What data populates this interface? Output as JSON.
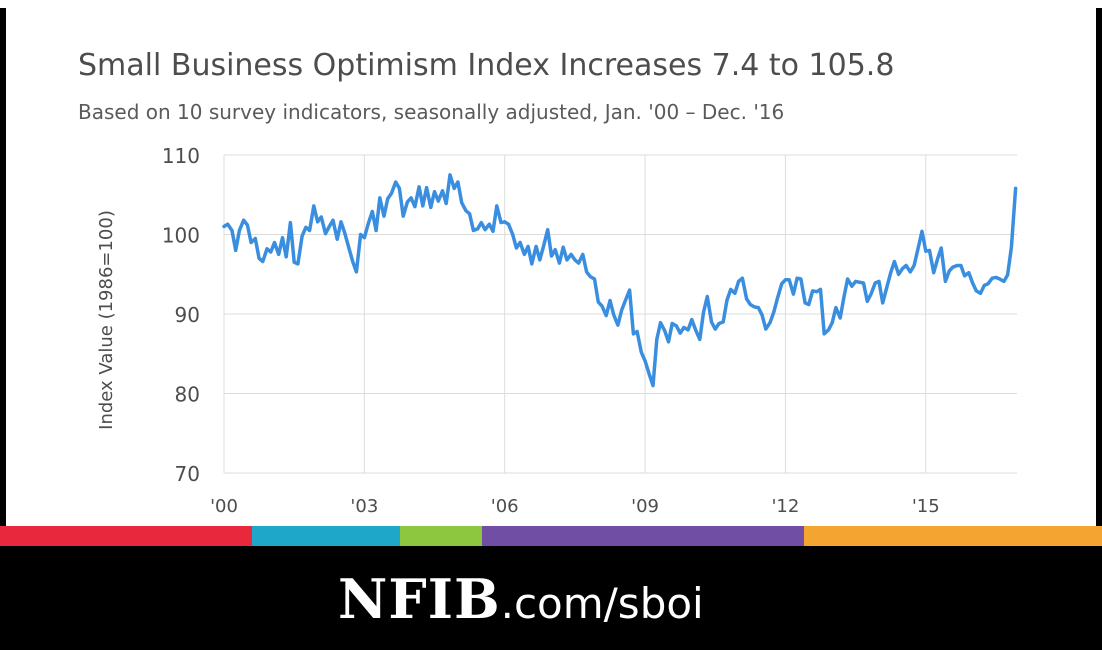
{
  "colors": {
    "line": "#3a8ee0",
    "grid": "#dcdcdc",
    "axis_text": "#4d4d4f",
    "stripes": [
      "#e8283c",
      "#1fa7c9",
      "#8dc63f",
      "#6f4ea3",
      "#f3a431"
    ]
  },
  "chart_data": {
    "type": "line",
    "title": "Small Business Optimism Index Increases 7.4 to 105.8",
    "subtitle": "Based on 10 survey indicators, seasonally adjusted, Jan. '00 – Dec. '16",
    "xlabel": "",
    "ylabel": "Index Value (1986=100)",
    "ylim": [
      70,
      110
    ],
    "yticks": [
      110,
      100,
      90,
      80,
      70
    ],
    "xlim": [
      2000,
      2016.95
    ],
    "xticks": [
      {
        "value": 2000,
        "label": "'00"
      },
      {
        "value": 2003,
        "label": "'03"
      },
      {
        "value": 2006,
        "label": "'06"
      },
      {
        "value": 2009,
        "label": "'09"
      },
      {
        "value": 2012,
        "label": "'12"
      },
      {
        "value": 2015,
        "label": "'15"
      }
    ],
    "grid": true,
    "series": [
      {
        "values": [
          [
            2000.0,
            101.0
          ],
          [
            2000.08,
            101.3
          ],
          [
            2000.17,
            100.5
          ],
          [
            2000.25,
            98.0
          ],
          [
            2000.33,
            100.5
          ],
          [
            2000.42,
            101.8
          ],
          [
            2000.5,
            101.2
          ],
          [
            2000.58,
            99.0
          ],
          [
            2000.67,
            99.5
          ],
          [
            2000.75,
            97.0
          ],
          [
            2000.83,
            96.6
          ],
          [
            2000.92,
            98.2
          ],
          [
            2001.0,
            97.8
          ],
          [
            2001.08,
            99.0
          ],
          [
            2001.17,
            97.5
          ],
          [
            2001.25,
            99.6
          ],
          [
            2001.33,
            97.2
          ],
          [
            2001.42,
            101.5
          ],
          [
            2001.5,
            96.5
          ],
          [
            2001.58,
            96.3
          ],
          [
            2001.67,
            99.8
          ],
          [
            2001.75,
            100.9
          ],
          [
            2001.83,
            100.5
          ],
          [
            2001.92,
            103.6
          ],
          [
            2002.0,
            101.6
          ],
          [
            2002.08,
            102.2
          ],
          [
            2002.17,
            100.1
          ],
          [
            2002.25,
            101.0
          ],
          [
            2002.33,
            101.8
          ],
          [
            2002.42,
            99.4
          ],
          [
            2002.5,
            101.6
          ],
          [
            2002.58,
            100.2
          ],
          [
            2002.67,
            98.3
          ],
          [
            2002.75,
            96.6
          ],
          [
            2002.83,
            95.3
          ],
          [
            2002.92,
            100.0
          ],
          [
            2003.0,
            99.6
          ],
          [
            2003.08,
            101.3
          ],
          [
            2003.17,
            102.9
          ],
          [
            2003.25,
            100.5
          ],
          [
            2003.33,
            104.6
          ],
          [
            2003.42,
            102.3
          ],
          [
            2003.5,
            104.5
          ],
          [
            2003.58,
            105.2
          ],
          [
            2003.67,
            106.6
          ],
          [
            2003.75,
            105.8
          ],
          [
            2003.83,
            102.3
          ],
          [
            2003.92,
            104.1
          ],
          [
            2004.0,
            104.6
          ],
          [
            2004.08,
            103.5
          ],
          [
            2004.17,
            106.0
          ],
          [
            2004.25,
            103.6
          ],
          [
            2004.33,
            105.9
          ],
          [
            2004.42,
            103.4
          ],
          [
            2004.5,
            105.4
          ],
          [
            2004.58,
            104.2
          ],
          [
            2004.67,
            105.5
          ],
          [
            2004.75,
            103.9
          ],
          [
            2004.83,
            107.5
          ],
          [
            2004.92,
            105.8
          ],
          [
            2005.0,
            106.6
          ],
          [
            2005.08,
            104.0
          ],
          [
            2005.17,
            103.0
          ],
          [
            2005.25,
            102.6
          ],
          [
            2005.33,
            100.5
          ],
          [
            2005.42,
            100.7
          ],
          [
            2005.5,
            101.5
          ],
          [
            2005.58,
            100.6
          ],
          [
            2005.67,
            101.3
          ],
          [
            2005.75,
            100.4
          ],
          [
            2005.83,
            103.6
          ],
          [
            2005.92,
            101.5
          ],
          [
            2006.0,
            101.6
          ],
          [
            2006.08,
            101.3
          ],
          [
            2006.17,
            100.0
          ],
          [
            2006.25,
            98.3
          ],
          [
            2006.33,
            99.0
          ],
          [
            2006.42,
            97.5
          ],
          [
            2006.5,
            98.5
          ],
          [
            2006.58,
            96.3
          ],
          [
            2006.67,
            98.5
          ],
          [
            2006.75,
            96.8
          ],
          [
            2006.83,
            98.5
          ],
          [
            2006.92,
            100.6
          ],
          [
            2007.0,
            97.3
          ],
          [
            2007.08,
            98.1
          ],
          [
            2007.17,
            96.4
          ],
          [
            2007.25,
            98.4
          ],
          [
            2007.33,
            96.8
          ],
          [
            2007.42,
            97.5
          ],
          [
            2007.5,
            96.8
          ],
          [
            2007.58,
            96.4
          ],
          [
            2007.67,
            97.5
          ],
          [
            2007.75,
            95.3
          ],
          [
            2007.83,
            94.7
          ],
          [
            2007.92,
            94.4
          ],
          [
            2008.0,
            91.5
          ],
          [
            2008.08,
            91.0
          ],
          [
            2008.17,
            89.8
          ],
          [
            2008.25,
            91.7
          ],
          [
            2008.33,
            89.9
          ],
          [
            2008.42,
            88.6
          ],
          [
            2008.5,
            90.5
          ],
          [
            2008.58,
            91.7
          ],
          [
            2008.67,
            93.0
          ],
          [
            2008.75,
            87.5
          ],
          [
            2008.83,
            87.8
          ],
          [
            2008.92,
            85.2
          ],
          [
            2009.0,
            84.1
          ],
          [
            2009.08,
            82.6
          ],
          [
            2009.17,
            81.0
          ],
          [
            2009.25,
            86.8
          ],
          [
            2009.33,
            88.9
          ],
          [
            2009.42,
            87.9
          ],
          [
            2009.5,
            86.5
          ],
          [
            2009.58,
            88.8
          ],
          [
            2009.67,
            88.5
          ],
          [
            2009.75,
            87.6
          ],
          [
            2009.83,
            88.3
          ],
          [
            2009.92,
            88.0
          ],
          [
            2010.0,
            89.3
          ],
          [
            2010.08,
            88.0
          ],
          [
            2010.17,
            86.8
          ],
          [
            2010.25,
            90.2
          ],
          [
            2010.33,
            92.2
          ],
          [
            2010.42,
            89.0
          ],
          [
            2010.5,
            88.1
          ],
          [
            2010.58,
            88.8
          ],
          [
            2010.67,
            89.0
          ],
          [
            2010.75,
            91.7
          ],
          [
            2010.83,
            93.1
          ],
          [
            2010.92,
            92.6
          ],
          [
            2011.0,
            94.1
          ],
          [
            2011.08,
            94.5
          ],
          [
            2011.17,
            91.9
          ],
          [
            2011.25,
            91.2
          ],
          [
            2011.33,
            90.9
          ],
          [
            2011.42,
            90.8
          ],
          [
            2011.5,
            89.9
          ],
          [
            2011.58,
            88.1
          ],
          [
            2011.67,
            88.9
          ],
          [
            2011.75,
            90.2
          ],
          [
            2011.83,
            92.0
          ],
          [
            2011.92,
            93.8
          ],
          [
            2012.0,
            94.3
          ],
          [
            2012.08,
            94.3
          ],
          [
            2012.17,
            92.5
          ],
          [
            2012.25,
            94.5
          ],
          [
            2012.33,
            94.4
          ],
          [
            2012.42,
            91.4
          ],
          [
            2012.5,
            91.2
          ],
          [
            2012.58,
            92.9
          ],
          [
            2012.67,
            92.8
          ],
          [
            2012.75,
            93.1
          ],
          [
            2012.83,
            87.5
          ],
          [
            2012.92,
            88.0
          ],
          [
            2013.0,
            88.9
          ],
          [
            2013.08,
            90.8
          ],
          [
            2013.17,
            89.5
          ],
          [
            2013.25,
            92.1
          ],
          [
            2013.33,
            94.4
          ],
          [
            2013.42,
            93.5
          ],
          [
            2013.5,
            94.1
          ],
          [
            2013.58,
            94.0
          ],
          [
            2013.67,
            93.9
          ],
          [
            2013.75,
            91.6
          ],
          [
            2013.83,
            92.5
          ],
          [
            2013.92,
            93.9
          ],
          [
            2014.0,
            94.1
          ],
          [
            2014.08,
            91.4
          ],
          [
            2014.17,
            93.4
          ],
          [
            2014.25,
            95.2
          ],
          [
            2014.33,
            96.6
          ],
          [
            2014.42,
            95.0
          ],
          [
            2014.5,
            95.7
          ],
          [
            2014.58,
            96.1
          ],
          [
            2014.67,
            95.3
          ],
          [
            2014.75,
            96.1
          ],
          [
            2014.83,
            98.1
          ],
          [
            2014.92,
            100.4
          ],
          [
            2015.0,
            97.9
          ],
          [
            2015.08,
            98.0
          ],
          [
            2015.17,
            95.2
          ],
          [
            2015.25,
            96.9
          ],
          [
            2015.33,
            98.3
          ],
          [
            2015.42,
            94.1
          ],
          [
            2015.5,
            95.4
          ],
          [
            2015.58,
            95.9
          ],
          [
            2015.67,
            96.1
          ],
          [
            2015.75,
            96.1
          ],
          [
            2015.83,
            94.8
          ],
          [
            2015.92,
            95.2
          ],
          [
            2016.0,
            93.9
          ],
          [
            2016.08,
            92.9
          ],
          [
            2016.17,
            92.6
          ],
          [
            2016.25,
            93.6
          ],
          [
            2016.33,
            93.8
          ],
          [
            2016.42,
            94.5
          ],
          [
            2016.5,
            94.6
          ],
          [
            2016.58,
            94.4
          ],
          [
            2016.67,
            94.1
          ],
          [
            2016.75,
            94.9
          ],
          [
            2016.83,
            98.4
          ],
          [
            2016.92,
            105.8
          ]
        ]
      }
    ]
  },
  "footer": {
    "brand": "NFIB",
    "url": ".com/sboi"
  }
}
